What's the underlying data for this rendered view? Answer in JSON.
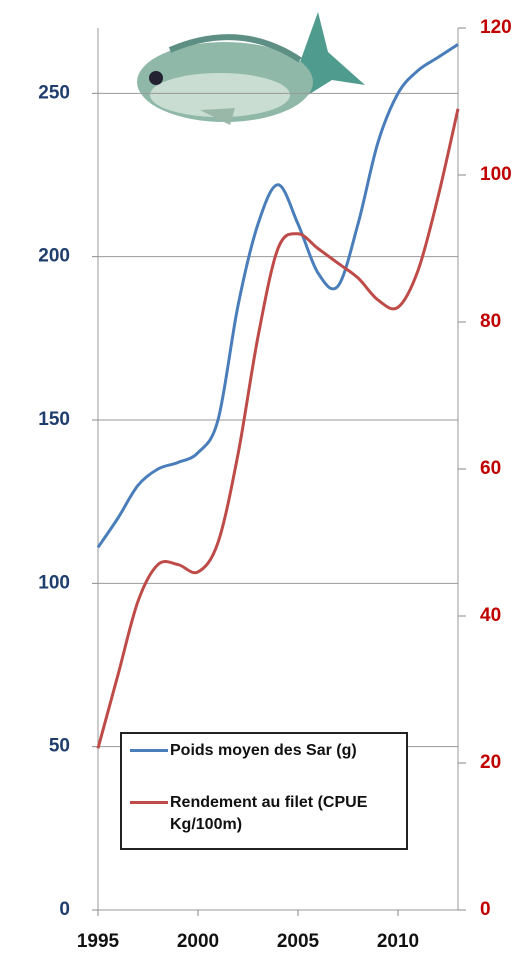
{
  "chart_data": {
    "type": "line",
    "x": [
      1995,
      1996,
      1997,
      1998,
      1999,
      2000,
      2001,
      2002,
      2003,
      2004,
      2005,
      2006,
      2007,
      2008,
      2009,
      2010,
      2011,
      2012,
      2013
    ],
    "series": [
      {
        "name": "Poids moyen des Sar (g)",
        "color": "#4a7ebb",
        "values": [
          111,
          120,
          130,
          135,
          137,
          140,
          150,
          185,
          210,
          222,
          210,
          195,
          191,
          210,
          235,
          250,
          257,
          261,
          265
        ]
      },
      {
        "name": "Rendement au filet (CPUE Kg/100m)",
        "color": "#be4b48",
        "axis": "y2",
        "values": [
          22,
          32,
          42,
          47,
          47,
          46,
          50,
          62,
          78,
          90,
          92,
          90,
          88,
          86,
          83,
          82,
          87,
          97,
          109
        ]
      }
    ],
    "xlim": [
      1995,
      2013
    ],
    "xticks": [
      1995,
      2000,
      2005,
      2010
    ],
    "ylim": [
      0,
      270
    ],
    "yticks": [
      0,
      50,
      100,
      150,
      200,
      250
    ],
    "y2lim": [
      0,
      120
    ],
    "y2ticks": [
      0,
      20,
      40,
      60,
      80,
      100,
      120
    ],
    "grid": true,
    "legend": "bottom"
  }
}
